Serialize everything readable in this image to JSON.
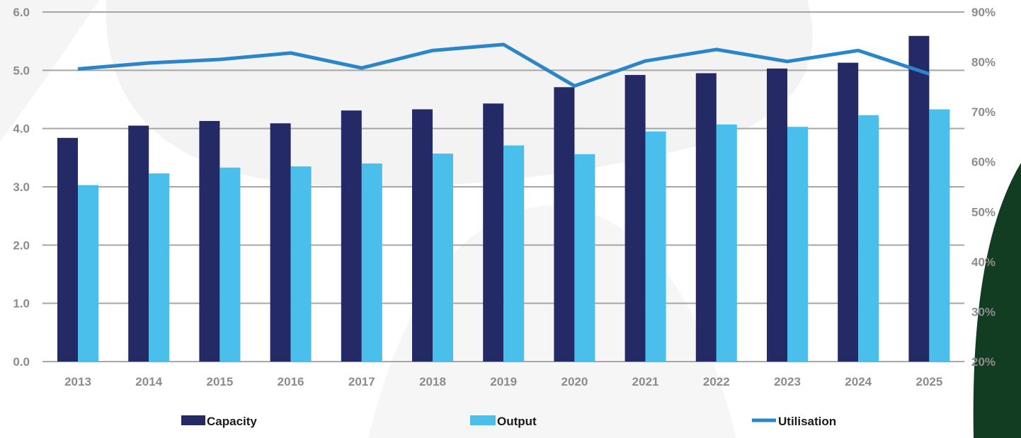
{
  "chart_data": {
    "type": "bar",
    "categories": [
      "2013",
      "2014",
      "2015",
      "2016",
      "2017",
      "2018",
      "2019",
      "2020",
      "2021",
      "2022",
      "2023",
      "2024",
      "2025"
    ],
    "series": [
      {
        "name": "Capacity",
        "type": "bar",
        "axis": "left",
        "color": "#232a66",
        "values": [
          3.84,
          4.05,
          4.13,
          4.09,
          4.31,
          4.33,
          4.43,
          4.71,
          4.92,
          4.95,
          5.03,
          5.13,
          5.59
        ]
      },
      {
        "name": "Output",
        "type": "bar",
        "axis": "left",
        "color": "#4bbfec",
        "values": [
          3.03,
          3.23,
          3.33,
          3.35,
          3.4,
          3.57,
          3.71,
          3.56,
          3.95,
          4.07,
          4.03,
          4.23,
          4.33
        ]
      },
      {
        "name": "Utilisation",
        "type": "line",
        "axis": "right",
        "color": "#2a86c8",
        "values": [
          78.6,
          79.8,
          80.5,
          81.8,
          78.8,
          82.3,
          83.5,
          75.2,
          80.2,
          82.5,
          80.1,
          82.3,
          77.6
        ]
      }
    ],
    "ylim": [
      0,
      6
    ],
    "yticks": [
      "0.0",
      "1.0",
      "2.0",
      "3.0",
      "4.0",
      "5.0",
      "6.0"
    ],
    "y2lim": [
      20,
      90
    ],
    "y2ticks": [
      "20%",
      "30%",
      "40%",
      "50%",
      "60%",
      "70%",
      "80%",
      "90%"
    ],
    "grid": true,
    "legend_position": "bottom"
  }
}
